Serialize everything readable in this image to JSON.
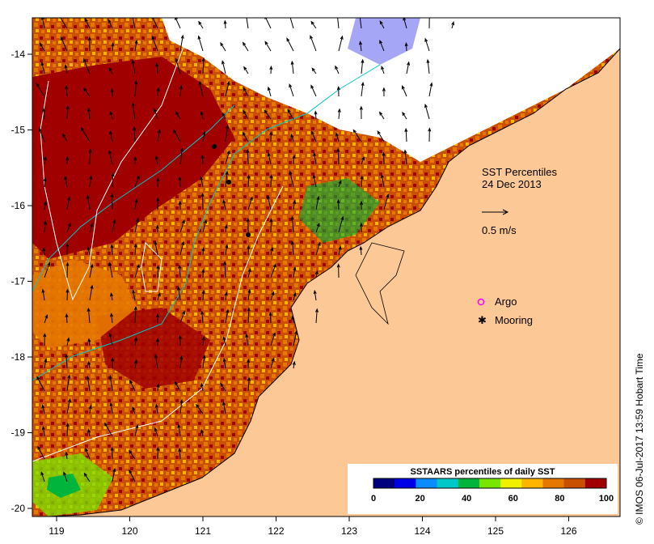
{
  "map": {
    "title": "SST Percentiles",
    "date": "24 Dec 2013",
    "velocity_scale_label": "0.5 m/s",
    "x_ticks": [
      "119",
      "120",
      "121",
      "122",
      "123",
      "124",
      "125",
      "126"
    ],
    "y_ticks": [
      "-14",
      "-15",
      "-16",
      "-17",
      "-18",
      "-19",
      "-20"
    ],
    "legend": {
      "argo_label": "Argo",
      "mooring_label": "Mooring"
    },
    "colorbar": {
      "title": "SSTAARS percentiles of daily SST",
      "tick_labels": [
        "0",
        "20",
        "40",
        "60",
        "80",
        "100"
      ],
      "colors": [
        "#00007f",
        "#0000e6",
        "#0a8cff",
        "#00c8c8",
        "#00b43c",
        "#78e600",
        "#f0f000",
        "#ffb400",
        "#e67800",
        "#c85000",
        "#a00000"
      ]
    },
    "credit": "© IMOS 06-Jul-2017 13:59 Hobart Time",
    "colors": {
      "land": "#fcc896",
      "no_data": "#ffffff",
      "contour": "#ffffff",
      "isobath": "#00c8c8"
    }
  }
}
